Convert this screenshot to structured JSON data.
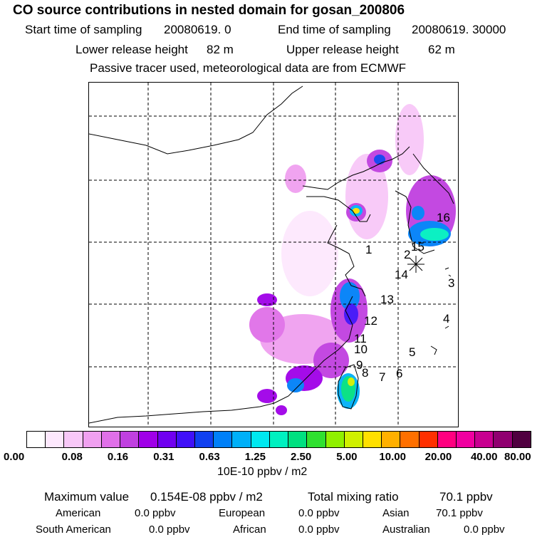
{
  "header": {
    "title": "CO  source contributions in nested domain for gosan_200806",
    "start_label": "Start time of sampling",
    "start_value": "20080619.     0",
    "end_label": "End time of sampling",
    "end_value": "20080619. 30000",
    "lower_label": "Lower release height",
    "lower_value": "82 m",
    "upper_label": "Upper release height",
    "upper_value": "62 m",
    "tracer_note": "Passive tracer used, meteorological data are from ECMWF"
  },
  "map": {
    "region_labels": [
      "1",
      "2",
      "3",
      "4",
      "5",
      "6",
      "7",
      "8",
      "9",
      "10",
      "11",
      "12",
      "13",
      "14",
      "15",
      "16"
    ]
  },
  "colorbar": {
    "colors": [
      "#ffffff",
      "#fde8fd",
      "#f8c8f8",
      "#f0a0f0",
      "#e070e8",
      "#c040e0",
      "#a000e8",
      "#7000f0",
      "#4010f8",
      "#1040f0",
      "#0080f8",
      "#00b0f8",
      "#00e8f0",
      "#00f0c0",
      "#00e080",
      "#30e030",
      "#90f000",
      "#d0f000",
      "#ffe000",
      "#ffb000",
      "#ff7000",
      "#ff3000",
      "#ff0080",
      "#f000a0",
      "#c80090",
      "#900070",
      "#500040"
    ],
    "tick_labels": [
      "0.00",
      "0.08",
      "0.16",
      "0.31",
      "0.63",
      "1.25",
      "2.50",
      "5.00",
      "10.00",
      "20.00",
      "40.00",
      "80.00"
    ],
    "units": "10E-10 ppbv / m2"
  },
  "stats": {
    "max_label": "Maximum value",
    "max_value": "0.154E-08 ppbv / m2",
    "total_label": "Total mixing ratio",
    "total_value": "70.1 ppbv",
    "american_label": "American",
    "american_value": "0.0 ppbv",
    "european_label": "European",
    "european_value": "0.0 ppbv",
    "asian_label": "Asian",
    "asian_value": "70.1 ppbv",
    "south_american_label": "South American",
    "south_american_value": "0.0 ppbv",
    "african_label": "African",
    "african_value": "0.0 ppbv",
    "australian_label": "Australian",
    "australian_value": "0.0 ppbv"
  }
}
